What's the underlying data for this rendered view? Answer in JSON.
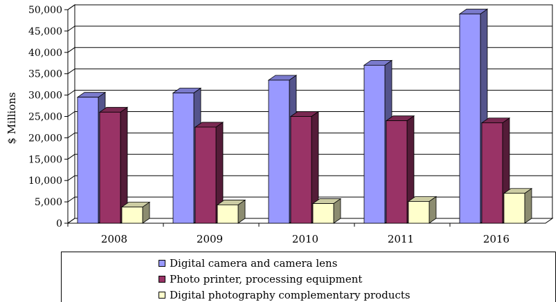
{
  "chart_data": {
    "type": "bar",
    "variant": "3d-clustered",
    "title": "",
    "xlabel": "",
    "ylabel": "$ Millions",
    "ylim": [
      0,
      50000
    ],
    "yticks": [
      0,
      5000,
      10000,
      15000,
      20000,
      25000,
      30000,
      35000,
      40000,
      45000,
      50000
    ],
    "ytick_labels": [
      "0",
      "5,000",
      "10,000",
      "15,000",
      "20,000",
      "25,000",
      "30,000",
      "35,000",
      "40,000",
      "45,000",
      "50,000"
    ],
    "grid": true,
    "legend_position": "bottom",
    "categories": [
      "2008",
      "2009",
      "2010",
      "2011",
      "2016"
    ],
    "series": [
      {
        "name": "Digital camera and camera lens",
        "color": "#9999ff",
        "values": [
          29500,
          30500,
          33500,
          37000,
          49000
        ]
      },
      {
        "name": "Photo printer, processing equipment",
        "color": "#993366",
        "values": [
          26000,
          22500,
          25000,
          24000,
          23500
        ]
      },
      {
        "name": "Digital photography complementary products",
        "color": "#ffffcc",
        "values": [
          3800,
          4300,
          4600,
          5100,
          7000
        ]
      }
    ]
  }
}
